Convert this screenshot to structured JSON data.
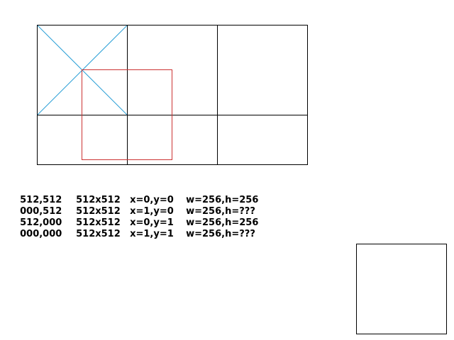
{
  "colors": {
    "grid": "#000000",
    "diagonals": "#2a9fd6",
    "selection": "#cc3333"
  },
  "readout": {
    "rows": [
      {
        "offset": "512,512",
        "size": "512x512",
        "tile": "x=0,y=0",
        "dims": "w=256,h=256"
      },
      {
        "offset": "000,512",
        "size": "512x512",
        "tile": "x=1,y=0",
        "dims": "w=256,h=???"
      },
      {
        "offset": "512,000",
        "size": "512x512",
        "tile": "x=0,y=1",
        "dims": "w=256,h=256"
      },
      {
        "offset": "000,000",
        "size": "512x512",
        "tile": "x=1,y=1",
        "dims": "w=256,h=???"
      }
    ]
  }
}
